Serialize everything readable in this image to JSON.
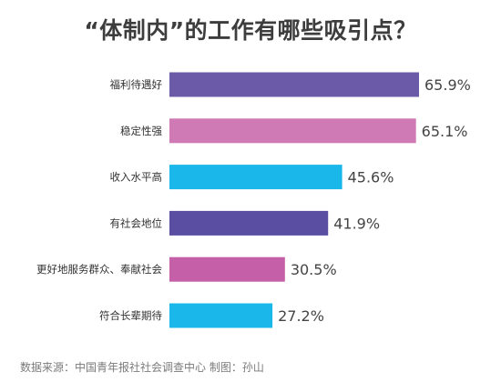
{
  "chart_data": {
    "type": "bar",
    "orientation": "horizontal",
    "title": "“体制内”的工作有哪些吸引点？",
    "categories": [
      "福利待遇好",
      "稳定性强",
      "收入水平高",
      "有社会地位",
      "更好地服务群众、奉献社会",
      "符合长辈期待"
    ],
    "values": [
      65.9,
      65.1,
      45.6,
      41.9,
      30.5,
      27.2
    ],
    "value_labels": [
      "65.9%",
      "65.1%",
      "45.6%",
      "41.9%",
      "30.5%",
      "27.2%"
    ],
    "bar_colors": [
      "#6a5aa8",
      "#d07ab5",
      "#1ab8ea",
      "#5a4ea3",
      "#c560a8",
      "#1ab8ea"
    ],
    "xlim": [
      0,
      70
    ],
    "grid": false,
    "legend": "none"
  },
  "source": "数据来源：中国青年报社社会调查中心  制图：孙山"
}
